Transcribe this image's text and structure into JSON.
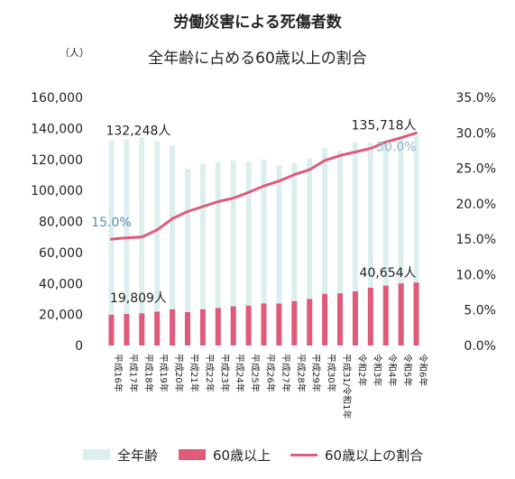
{
  "chart_data": {
    "type": "bar+line",
    "title": "労働災害による死傷者数",
    "subtitle": "全年齢に占める60歳以上の割合",
    "unit_left": "（人）",
    "categories": [
      "平成16年",
      "平成17年",
      "平成18年",
      "平成19年",
      "平成20年",
      "平成21年",
      "平成22年",
      "平成23年",
      "平成24年",
      "平成25年",
      "平成26年",
      "平成27年",
      "平成28年",
      "平成29年",
      "平成30年",
      "平成31/令和1年",
      "令和2年",
      "令和3年",
      "令和4年",
      "令和5年",
      "令和6年"
    ],
    "series": [
      {
        "name": "全年齢",
        "axis": "left",
        "kind": "bar",
        "color": "#dcefef",
        "values": [
          132248,
          133000,
          134300,
          131500,
          129000,
          114000,
          117000,
          118000,
          119500,
          118500,
          120000,
          116500,
          117900,
          120500,
          127300,
          125600,
          131200,
          130600,
          132400,
          135400,
          135718
        ]
      },
      {
        "name": "60歳以上",
        "axis": "left",
        "kind": "bar",
        "color": "#e05a7a",
        "values": [
          19809,
          20300,
          20700,
          21800,
          23300,
          21500,
          23300,
          24200,
          25300,
          25700,
          27100,
          27000,
          28600,
          30000,
          33300,
          33700,
          34900,
          37200,
          38600,
          40000,
          40654
        ]
      },
      {
        "name": "60歳以上の割合",
        "axis": "right",
        "kind": "line",
        "color": "#e05a7a",
        "values": [
          15.0,
          15.2,
          15.3,
          16.3,
          17.9,
          18.9,
          19.6,
          20.3,
          20.8,
          21.6,
          22.5,
          23.2,
          24.1,
          24.8,
          26.1,
          26.8,
          27.3,
          27.8,
          28.7,
          29.3,
          30.0
        ]
      }
    ],
    "y_left": {
      "min": 0,
      "max": 160000,
      "ticks": [
        "0",
        "20,000",
        "40,000",
        "60,000",
        "80,000",
        "100,000",
        "120,000",
        "140,000",
        "160,000"
      ]
    },
    "y_right": {
      "min": 0,
      "max": 35,
      "ticks": [
        "0.0%",
        "5.0%",
        "10.0%",
        "15.0%",
        "20.0%",
        "25.0%",
        "30.0%",
        "35.0%"
      ]
    },
    "annotations": [
      {
        "text": "132,248人",
        "series": 0,
        "index": 0
      },
      {
        "text": "135,718人",
        "series": 0,
        "index": 20
      },
      {
        "text": "19,809人",
        "series": 1,
        "index": 0
      },
      {
        "text": "40,654人",
        "series": 1,
        "index": 20
      },
      {
        "text": "15.0%",
        "series": 2,
        "index": 0
      },
      {
        "text": "30.0%",
        "series": 2,
        "index": 20
      }
    ],
    "grid": false,
    "legend_position": "bottom"
  }
}
